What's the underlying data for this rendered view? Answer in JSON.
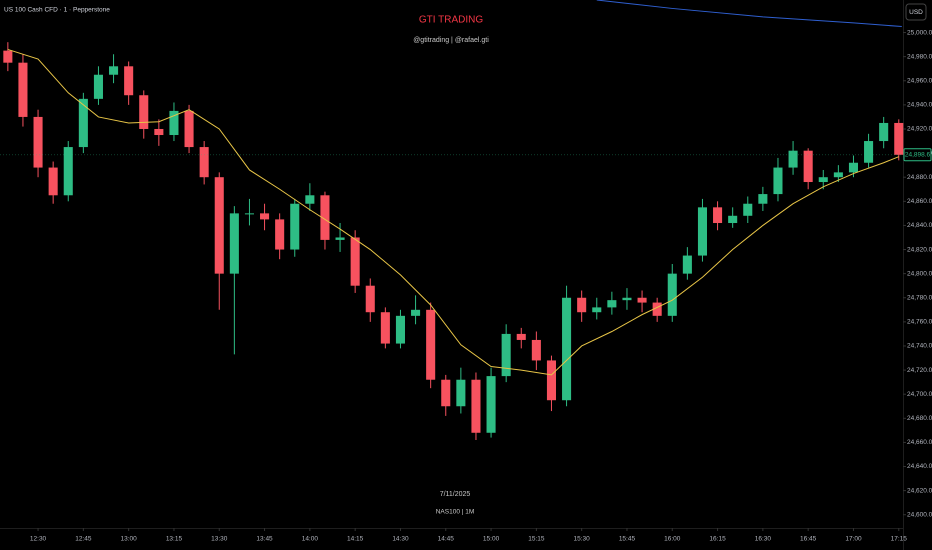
{
  "chart_data": {
    "type": "candlestick",
    "symbol_label": "US 100 Cash CFD · 1 · Pepperstone",
    "title": "GTI TRADING",
    "subtitle": "@gtitrading  |  @rafael.gti",
    "watermark_date": "7/11/2025",
    "watermark_symbol": "NAS100 | 1M",
    "currency": "USD",
    "up_color": "#2ebd85",
    "down_color": "#f7525f",
    "xlim": [
      737.4,
      1036.4
    ],
    "ylim": [
      24589,
      25027
    ],
    "xticks": [
      {
        "value": 750,
        "label": "12:30"
      },
      {
        "value": 765,
        "label": "12:45"
      },
      {
        "value": 780,
        "label": "13:00"
      },
      {
        "value": 795,
        "label": "13:15"
      },
      {
        "value": 810,
        "label": "13:30"
      },
      {
        "value": 825,
        "label": "13:45"
      },
      {
        "value": 840,
        "label": "14:00"
      },
      {
        "value": 855,
        "label": "14:15"
      },
      {
        "value": 870,
        "label": "14:30"
      },
      {
        "value": 885,
        "label": "14:45"
      },
      {
        "value": 900,
        "label": "15:00"
      },
      {
        "value": 915,
        "label": "15:15"
      },
      {
        "value": 930,
        "label": "15:30"
      },
      {
        "value": 945,
        "label": "15:45"
      },
      {
        "value": 960,
        "label": "16:00"
      },
      {
        "value": 975,
        "label": "16:15"
      },
      {
        "value": 990,
        "label": "16:30"
      },
      {
        "value": 1005,
        "label": "16:45"
      },
      {
        "value": 1020,
        "label": "17:00"
      },
      {
        "value": 1035,
        "label": "17:15"
      }
    ],
    "yticks": [
      {
        "value": 24600,
        "label": "24,600.0"
      },
      {
        "value": 24620,
        "label": "24,620.0"
      },
      {
        "value": 24640,
        "label": "24,640.0"
      },
      {
        "value": 24660,
        "label": "24,660.0"
      },
      {
        "value": 24680,
        "label": "24,680.0"
      },
      {
        "value": 24700,
        "label": "24,700.0"
      },
      {
        "value": 24720,
        "label": "24,720.0"
      },
      {
        "value": 24740,
        "label": "24,740.0"
      },
      {
        "value": 24760,
        "label": "24,760.0"
      },
      {
        "value": 24780,
        "label": "24,780.0"
      },
      {
        "value": 24800,
        "label": "24,800.0"
      },
      {
        "value": 24820,
        "label": "24,820.0"
      },
      {
        "value": 24840,
        "label": "24,840.0"
      },
      {
        "value": 24860,
        "label": "24,860.0"
      },
      {
        "value": 24880,
        "label": "24,880.0"
      },
      {
        "value": 24900,
        "label": "24,900.0"
      },
      {
        "value": 24920,
        "label": "24,920.0"
      },
      {
        "value": 24940,
        "label": "24,940.0"
      },
      {
        "value": 24960,
        "label": "24,960.0"
      },
      {
        "value": 24980,
        "label": "24,980.0"
      },
      {
        "value": 25000,
        "label": "25,000.0"
      }
    ],
    "candles": {
      "x": [
        740,
        745,
        750,
        755,
        760,
        765,
        770,
        775,
        780,
        785,
        790,
        795,
        800,
        805,
        810,
        815,
        820,
        825,
        830,
        835,
        840,
        845,
        850,
        855,
        860,
        865,
        870,
        875,
        880,
        885,
        890,
        895,
        900,
        905,
        910,
        915,
        920,
        925,
        930,
        935,
        940,
        945,
        950,
        955,
        960,
        965,
        970,
        975,
        980,
        985,
        990,
        995,
        1000,
        1005,
        1010,
        1015,
        1020,
        1025,
        1030,
        1035
      ],
      "open": [
        24985,
        24975,
        24930,
        24888,
        24865,
        24905,
        24945,
        24965,
        24972,
        24948,
        24920,
        24915,
        24935,
        24905,
        24880,
        24800,
        24850,
        24850,
        24845,
        24820,
        24858,
        24865,
        24828,
        24830,
        24790,
        24768,
        24742,
        24765,
        24770,
        24712,
        24690,
        24712,
        24668,
        24715,
        24750,
        24745,
        24728,
        24695,
        24780,
        24768,
        24772,
        24778,
        24780,
        24776,
        24765,
        24800,
        24815,
        24855,
        24842,
        24848,
        24858,
        24866,
        24888,
        24902,
        24876,
        24880,
        24884,
        24892,
        24910,
        24925
      ],
      "high": [
        24992,
        24982,
        24936,
        24893,
        24910,
        24950,
        24972,
        24982,
        24976,
        24952,
        24928,
        24942,
        24940,
        24910,
        24884,
        24856,
        24862,
        24858,
        24850,
        24862,
        24875,
        24868,
        24842,
        24836,
        24796,
        24772,
        24770,
        24782,
        24776,
        24716,
        24722,
        24718,
        24722,
        24758,
        24755,
        24752,
        24732,
        24790,
        24786,
        24780,
        24785,
        24788,
        24786,
        24780,
        24808,
        24822,
        24862,
        24860,
        24855,
        24864,
        24872,
        24896,
        24910,
        24904,
        24886,
        24890,
        24898,
        24916,
        24930,
        24928
      ],
      "low": [
        24968,
        24922,
        24880,
        24858,
        24860,
        24900,
        24940,
        24958,
        24940,
        24912,
        24906,
        24910,
        24900,
        24874,
        24770,
        24733,
        24840,
        24836,
        24812,
        24814,
        24852,
        24820,
        24818,
        24784,
        24760,
        24738,
        24738,
        24758,
        24705,
        24682,
        24684,
        24662,
        24664,
        24710,
        24738,
        24720,
        24686,
        24690,
        24760,
        24762,
        24766,
        24770,
        24768,
        24760,
        24760,
        24795,
        24810,
        24836,
        24838,
        24842,
        24852,
        24860,
        24882,
        24870,
        24870,
        24876,
        24880,
        24888,
        24904,
        24894
      ],
      "close": [
        24975,
        24930,
        24888,
        24865,
        24905,
        24945,
        24965,
        24972,
        24948,
        24920,
        24915,
        24935,
        24905,
        24880,
        24800,
        24850,
        24850,
        24845,
        24820,
        24858,
        24865,
        24828,
        24830,
        24790,
        24768,
        24742,
        24765,
        24770,
        24712,
        24690,
        24712,
        24668,
        24715,
        24750,
        24745,
        24728,
        24695,
        24780,
        24768,
        24772,
        24778,
        24780,
        24776,
        24765,
        24800,
        24815,
        24855,
        24842,
        24848,
        24858,
        24866,
        24888,
        24902,
        24876,
        24880,
        24884,
        24892,
        24910,
        24925,
        24898.6
      ]
    },
    "lines": [
      {
        "color": "#e8c547",
        "x": [
          740,
          750,
          760,
          770,
          780,
          790,
          800,
          810,
          820,
          830,
          840,
          850,
          860,
          870,
          880,
          890,
          900,
          910,
          920,
          930,
          940,
          950,
          960,
          970,
          980,
          990,
          1000,
          1010,
          1020,
          1030,
          1035
        ],
        "values": [
          24986,
          24978,
          24950,
          24930,
          24925,
          24926,
          24936,
          24920,
          24886,
          24870,
          24853,
          24837,
          24820,
          24799,
          24774,
          24741,
          24723,
          24720,
          24716,
          24740,
          24752,
          24766,
          24778,
          24797,
          24820,
          24840,
          24858,
          24872,
          24883,
          24892,
          24897
        ]
      },
      {
        "color": "#2f5fd0",
        "x": [
          935,
          960,
          990,
          1020,
          1036
        ],
        "values": [
          25027,
          25020,
          25013,
          25008,
          25005
        ]
      }
    ],
    "last_price": {
      "value": 24898.6,
      "label": "24,898.6"
    }
  }
}
